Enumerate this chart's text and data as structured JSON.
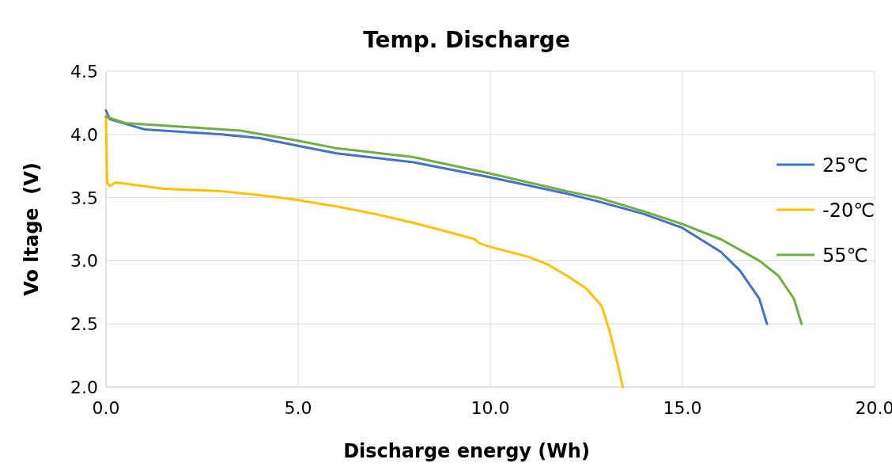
{
  "chart_data": {
    "type": "line",
    "title": "Temp. Discharge",
    "xlabel": "Discharge energy (Wh)",
    "ylabel": "Vo ltage  (V)",
    "xlim": [
      0,
      20
    ],
    "xticks": [
      {
        "value": 0,
        "label": "0.0"
      },
      {
        "value": 5,
        "label": "5.0"
      },
      {
        "value": 10,
        "label": "10.0"
      },
      {
        "value": 15,
        "label": "15.0"
      },
      {
        "value": 20,
        "label": "20.0"
      }
    ],
    "ylim": [
      2,
      4.5
    ],
    "yticks": [
      {
        "value": 2,
        "label": "2.0"
      },
      {
        "value": 2.5,
        "label": "2.5"
      },
      {
        "value": 3,
        "label": "3.0"
      },
      {
        "value": 3.5,
        "label": "3.5"
      },
      {
        "value": 4,
        "label": "4.0"
      },
      {
        "value": 4.5,
        "label": "4.5"
      }
    ],
    "grid": true,
    "legend": "right",
    "marker": "none",
    "line_style": "solid",
    "series": [
      {
        "name": "25℃",
        "color": "#4472c4",
        "x": [
          0,
          0.1,
          1,
          3,
          4,
          5,
          6,
          8,
          10,
          12,
          12.8,
          14,
          15,
          16,
          16.5,
          17,
          17.2
        ],
        "values": [
          4.19,
          4.12,
          4.04,
          4.0,
          3.97,
          3.91,
          3.85,
          3.78,
          3.66,
          3.53,
          3.47,
          3.37,
          3.26,
          3.07,
          2.92,
          2.7,
          2.5
        ]
      },
      {
        "name": "-20℃",
        "color": "#ffc000",
        "x": [
          0,
          0.03,
          0.1,
          0.25,
          0.5,
          1.5,
          3,
          4,
          5,
          6,
          7,
          8,
          9,
          9.6,
          9.7,
          10,
          11,
          11.5,
          12,
          12.5,
          12.9,
          13.1,
          13.3,
          13.45
        ],
        "values": [
          4.15,
          3.62,
          3.59,
          3.62,
          3.61,
          3.57,
          3.55,
          3.52,
          3.48,
          3.43,
          3.37,
          3.3,
          3.22,
          3.17,
          3.14,
          3.11,
          3.03,
          2.97,
          2.88,
          2.78,
          2.64,
          2.45,
          2.2,
          2.0
        ]
      },
      {
        "name": "55℃",
        "color": "#70ad47",
        "x": [
          0,
          0.5,
          2,
          3.5,
          5,
          6,
          8,
          10,
          12,
          12.8,
          14,
          15,
          16,
          17,
          17.5,
          17.9,
          18.1
        ],
        "values": [
          4.14,
          4.09,
          4.06,
          4.03,
          3.95,
          3.89,
          3.82,
          3.69,
          3.55,
          3.5,
          3.39,
          3.29,
          3.17,
          3.0,
          2.88,
          2.7,
          2.5
        ]
      }
    ]
  }
}
